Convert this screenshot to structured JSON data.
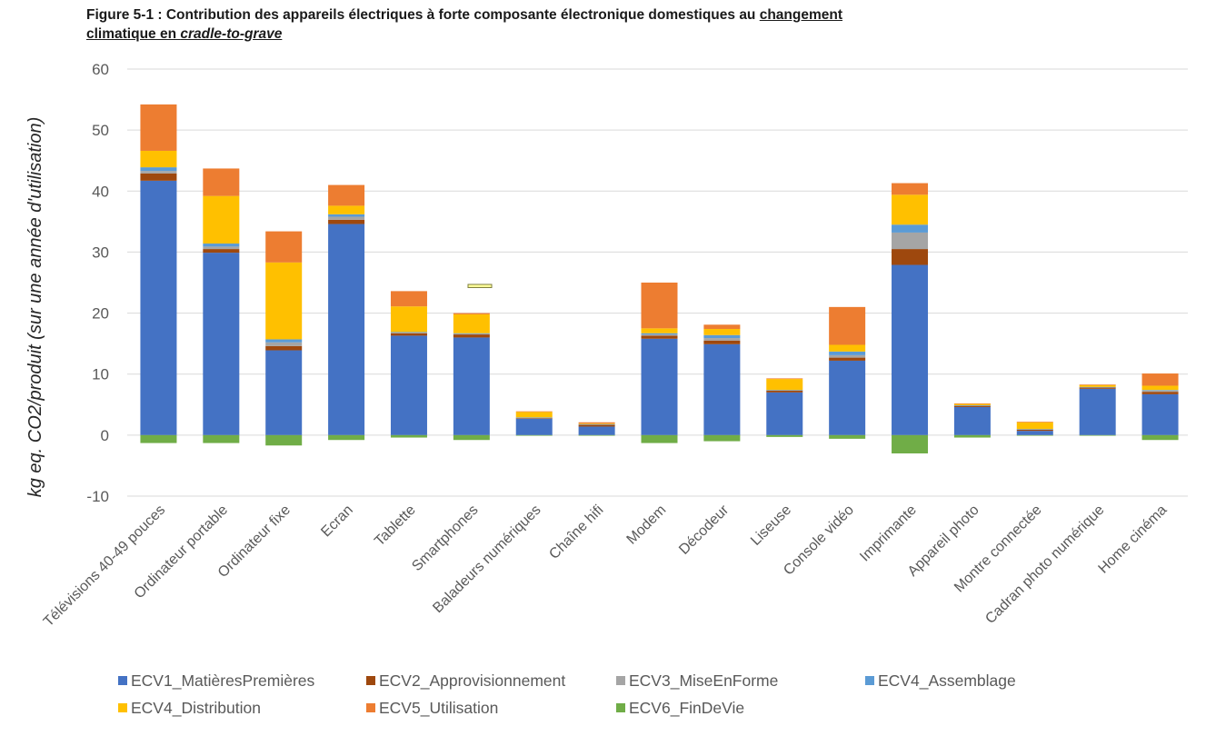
{
  "chart_data": {
    "type": "bar",
    "stacked": true,
    "title_lines": [
      [
        {
          "text": "Figure 5-1 : Contribution des appareils électriques à forte composante électronique domestiques au ",
          "underline": false,
          "italic": false
        },
        {
          "text": "changement",
          "underline": true,
          "italic": false
        }
      ],
      [
        {
          "text": "climatique en ",
          "underline": true,
          "italic": false
        },
        {
          "text": "cradle-to-grave",
          "underline": true,
          "italic": true
        }
      ]
    ],
    "xlabel": "",
    "ylabel": "kg eq. CO2/produit (sur une année d'utilisation)",
    "ylim": [
      -10,
      60
    ],
    "yticks": [
      -10,
      0,
      10,
      20,
      30,
      40,
      50,
      60
    ],
    "grid": true,
    "legend": "bottom",
    "categories": [
      "Télévisions 40-49 pouces",
      "Ordinateur portable",
      "Ordinateur fixe",
      "Ecran",
      "Tablette",
      "Smartphones",
      "Baladeurs numériques",
      "Chaîne hifi",
      "Modem",
      "Décodeur",
      "Liseuse",
      "Console vidéo",
      "Imprimante",
      "Appareil photo",
      "Montre connectée",
      "Cadran photo numérique",
      "Home cinéma"
    ],
    "series": [
      {
        "name": "ECV1_MatièresPremières",
        "color": "#4472C4",
        "values": [
          41.7,
          29.9,
          13.9,
          34.6,
          16.3,
          16.0,
          2.7,
          1.4,
          15.8,
          14.9,
          7.0,
          12.2,
          27.9,
          4.6,
          0.7,
          7.6,
          6.7
        ]
      },
      {
        "name": "ECV2_Approvisionnement",
        "color": "#9E480E",
        "values": [
          1.2,
          0.6,
          0.7,
          0.7,
          0.4,
          0.5,
          0.1,
          0.3,
          0.5,
          0.6,
          0.3,
          0.5,
          2.6,
          0.2,
          0.2,
          0.2,
          0.4
        ]
      },
      {
        "name": "ECV3_MiseEnForme",
        "color": "#A5A5A5",
        "values": [
          0.4,
          0.4,
          0.6,
          0.5,
          0.1,
          0.1,
          0.05,
          0.05,
          0.2,
          0.4,
          0.05,
          0.4,
          2.7,
          0.05,
          0.05,
          0.05,
          0.2
        ]
      },
      {
        "name": "ECV4_Assemblage",
        "color": "#5B9BD5",
        "values": [
          0.6,
          0.5,
          0.5,
          0.4,
          0.1,
          0.1,
          0.05,
          0.05,
          0.2,
          0.5,
          0.05,
          0.6,
          1.3,
          0.05,
          0.05,
          0.05,
          0.1
        ]
      },
      {
        "name": "ECV4_Distribution",
        "color": "#FFC000",
        "values": [
          2.7,
          7.8,
          12.6,
          1.4,
          4.2,
          3.1,
          0.9,
          0.1,
          0.8,
          1.0,
          1.8,
          1.1,
          4.9,
          0.2,
          1.1,
          0.3,
          0.7
        ]
      },
      {
        "name": "ECV5_Utilisation",
        "color": "#ED7D31",
        "values": [
          7.6,
          4.5,
          5.1,
          3.4,
          2.5,
          0.2,
          0.1,
          0.2,
          7.5,
          0.7,
          0.1,
          6.2,
          1.9,
          0.1,
          0.1,
          0.1,
          2.0
        ]
      },
      {
        "name": "ECV6_FinDeVie",
        "color": "#70AD47",
        "values": [
          -1.3,
          -1.3,
          -1.7,
          -0.8,
          -0.4,
          -0.8,
          -0.1,
          -0.1,
          -1.3,
          -1.0,
          -0.3,
          -0.6,
          -3.0,
          -0.4,
          -0.1,
          -0.1,
          -0.8
        ]
      }
    ]
  }
}
